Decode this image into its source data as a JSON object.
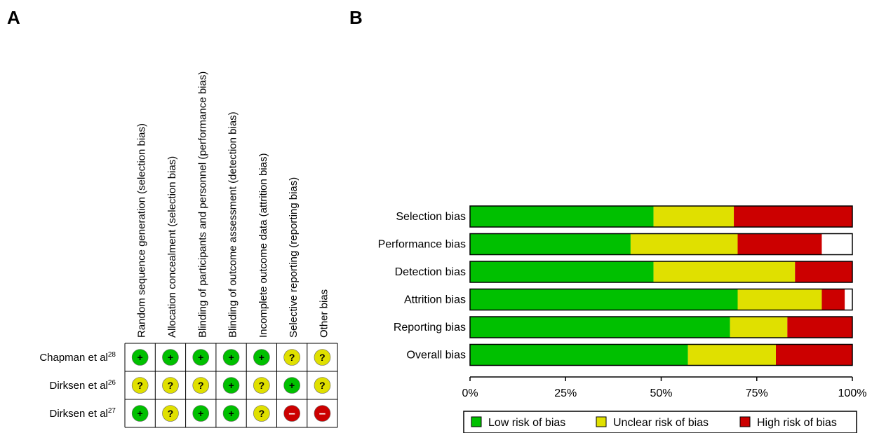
{
  "panel_a_label": "A",
  "panel_b_label": "B",
  "colors": {
    "low": "#00c000",
    "unclear": "#e0e000",
    "high": "#cc0000",
    "border": "#000000"
  },
  "chart_data": [
    {
      "type": "table",
      "columns": [
        "Random sequence generation (selection bias)",
        "Allocation concealment (selection bias)",
        "Blinding of participants and personnel (performance bias)",
        "Blinding of outcome assessment (detection bias)",
        "Incomplete outcome data (attrition bias)",
        "Selective reporting (reporting bias)",
        "Other bias"
      ],
      "rows": [
        {
          "study": "Chapman et al",
          "ref": "28",
          "ratings": [
            "+",
            "+",
            "+",
            "+",
            "+",
            "?",
            "?"
          ]
        },
        {
          "study": "Dirksen et al",
          "ref": "26",
          "ratings": [
            "?",
            "?",
            "?",
            "+",
            "?",
            "+",
            "?"
          ]
        },
        {
          "study": "Dirksen et al",
          "ref": "27",
          "ratings": [
            "+",
            "?",
            "+",
            "+",
            "?",
            "–",
            "–"
          ]
        }
      ],
      "rating_key": {
        "+": "low",
        "?": "unclear",
        "–": "high"
      }
    },
    {
      "type": "bar",
      "orientation": "horizontal",
      "stacked": true,
      "categories": [
        "Selection bias",
        "Performance bias",
        "Detection bias",
        "Attrition bias",
        "Reporting bias",
        "Overall bias"
      ],
      "series": [
        {
          "name": "Low risk of bias",
          "color": "#00c000",
          "values": [
            48,
            42,
            48,
            70,
            68,
            57
          ]
        },
        {
          "name": "Unclear risk of bias",
          "color": "#e0e000",
          "values": [
            21,
            28,
            37,
            22,
            15,
            23
          ]
        },
        {
          "name": "High risk of bias",
          "color": "#cc0000",
          "values": [
            31,
            22,
            15,
            6,
            17,
            20
          ]
        }
      ],
      "xlim": [
        0,
        100
      ],
      "x_ticks": [
        "0%",
        "25%",
        "50%",
        "75%",
        "100%"
      ],
      "legend_position": "bottom"
    }
  ]
}
